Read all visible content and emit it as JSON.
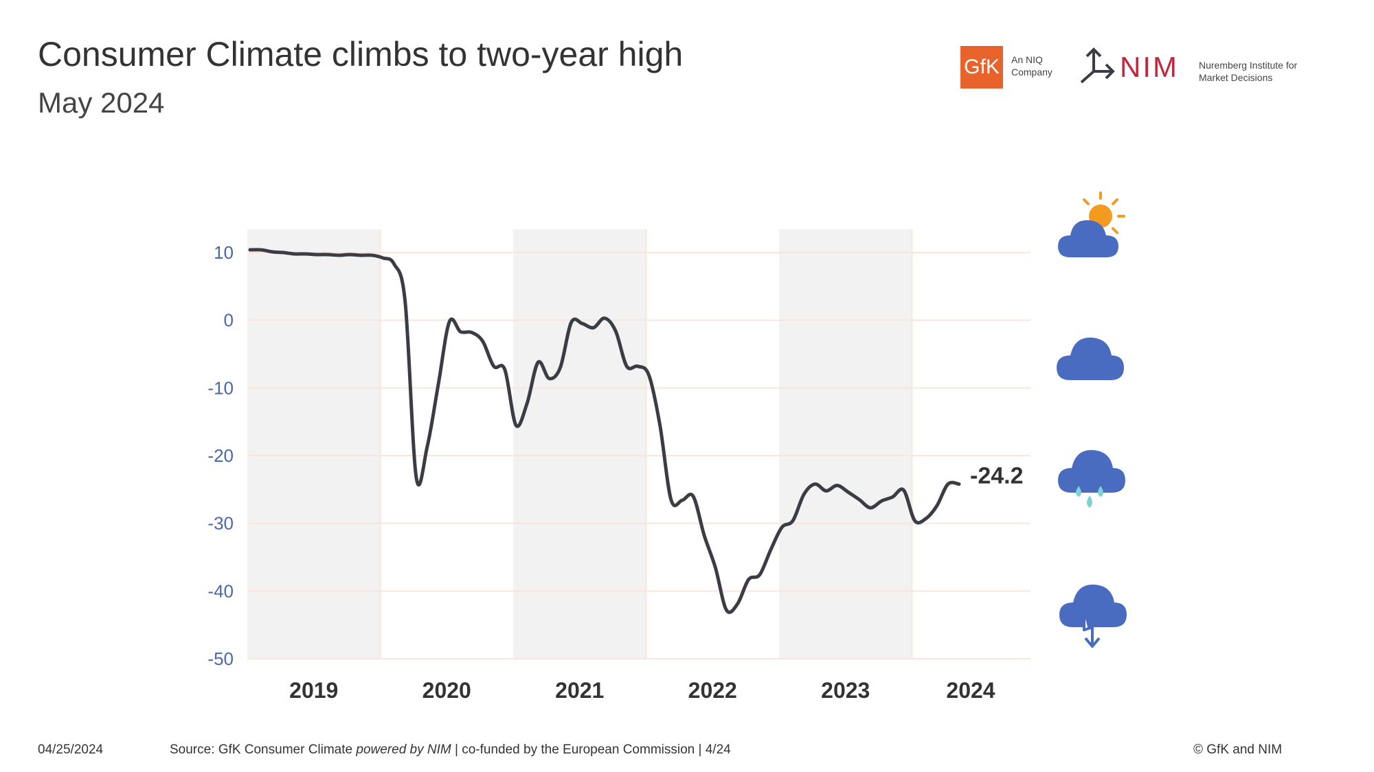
{
  "header": {
    "title": "Consumer Climate climbs to two-year high",
    "subtitle": "May 2024"
  },
  "logos": {
    "gfk_mark": "GfK",
    "gfk_tagline": "An NIQ Company",
    "nim_mark": "NIM",
    "nim_tagline": "Nuremberg Institute for Market Decisions"
  },
  "weather_icons": [
    "sun-cloud-icon",
    "cloud-icon",
    "rain-cloud-icon",
    "storm-cloud-icon"
  ],
  "chart_data": {
    "type": "line",
    "title": "",
    "xlabel": "",
    "ylabel": "",
    "ylim": [
      -50,
      10
    ],
    "y_ticks": [
      10,
      0,
      -10,
      -20,
      -30,
      -40,
      -50
    ],
    "x_tick_labels": [
      "2019",
      "2020",
      "2021",
      "2022",
      "2023",
      "2024"
    ],
    "shaded_years": [
      "2019",
      "2021",
      "2023"
    ],
    "grid": true,
    "line_color": "#3a3d44",
    "tick_color": "#4a66ad",
    "shade_color": "#f2f2f2",
    "grid_color": "#fbe4da",
    "last_value_label": "-24.2",
    "series": [
      {
        "name": "",
        "x": [
          "2019-01",
          "2019-02",
          "2019-03",
          "2019-04",
          "2019-05",
          "2019-06",
          "2019-07",
          "2019-08",
          "2019-09",
          "2019-10",
          "2019-11",
          "2019-12",
          "2020-01",
          "2020-02",
          "2020-03",
          "2020-04",
          "2020-05",
          "2020-06",
          "2020-07",
          "2020-08",
          "2020-09",
          "2020-10",
          "2020-11",
          "2020-12",
          "2021-01",
          "2021-02",
          "2021-03",
          "2021-04",
          "2021-05",
          "2021-06",
          "2021-07",
          "2021-08",
          "2021-09",
          "2021-10",
          "2021-11",
          "2021-12",
          "2022-01",
          "2022-02",
          "2022-03",
          "2022-04",
          "2022-05",
          "2022-06",
          "2022-07",
          "2022-08",
          "2022-09",
          "2022-10",
          "2022-11",
          "2022-12",
          "2023-01",
          "2023-02",
          "2023-03",
          "2023-04",
          "2023-05",
          "2023-06",
          "2023-07",
          "2023-08",
          "2023-09",
          "2023-10",
          "2023-11",
          "2023-12",
          "2024-01",
          "2024-02",
          "2024-03",
          "2024-04",
          "2024-05"
        ],
        "values": [
          10.4,
          10.4,
          10.1,
          10.0,
          9.8,
          9.8,
          9.7,
          9.7,
          9.6,
          9.7,
          9.6,
          9.6,
          9.2,
          8.3,
          2.7,
          -23.2,
          -18.6,
          -9.4,
          -0.2,
          -1.7,
          -1.8,
          -3.1,
          -6.8,
          -7.3,
          -15.5,
          -12.3,
          -6.2,
          -8.6,
          -7.0,
          -0.3,
          -0.5,
          -1.1,
          0.3,
          -1.6,
          -6.8,
          -6.8,
          -8.1,
          -15.5,
          -26.5,
          -26.6,
          -26.0,
          -31.8,
          -36.5,
          -42.8,
          -41.9,
          -38.3,
          -37.6,
          -33.9,
          -30.6,
          -29.6,
          -25.7,
          -24.2,
          -25.2,
          -24.4,
          -25.4,
          -26.5,
          -27.7,
          -26.7,
          -26.1,
          -25.1,
          -29.6,
          -29.3,
          -27.4,
          -24.2,
          -24.2
        ]
      }
    ]
  },
  "footer": {
    "date": "04/25/2024",
    "source_prefix": "Source: GfK Consumer Climate ",
    "source_italic": "powered by NIM",
    "source_suffix": " | co-funded by the European Commission | 4/24",
    "copyright": "© GfK and NIM"
  }
}
